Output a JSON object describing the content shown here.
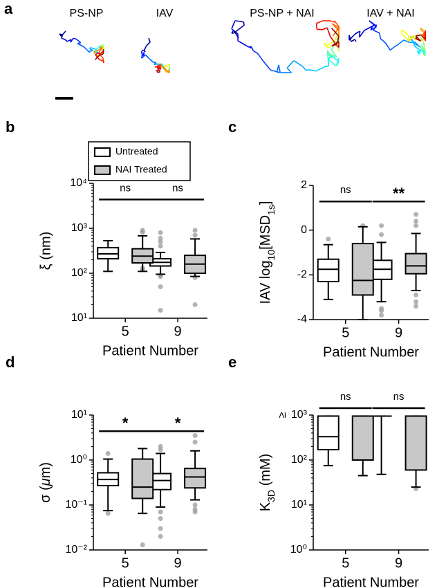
{
  "panel_a": {
    "letter": "a",
    "titles": [
      "PS-NP",
      "IAV",
      "PS-NP + NAI",
      "IAV + NAI"
    ]
  },
  "chart_data": [
    {
      "type": "box",
      "letter": "b",
      "ylabel": "ξ (nm)",
      "xlabel": "Patient Number",
      "categories": [
        "5",
        "9"
      ],
      "log": true,
      "ylim": [
        10,
        10000
      ],
      "yticks": [
        {
          "value": 10,
          "label": "10¹"
        },
        {
          "value": 100,
          "label": "10²"
        },
        {
          "value": 1000,
          "label": "10³"
        },
        {
          "value": 10000,
          "label": "10⁴"
        }
      ],
      "significance": [
        "ns",
        "ns"
      ],
      "legend": "top-left",
      "series": [
        {
          "name": "Untreated",
          "color": "#ffffff",
          "boxes": [
            {
              "min": 110,
              "q1": 210,
              "median": 270,
              "q3": 370,
              "max": 530,
              "outliers": []
            },
            {
              "min": 95,
              "q1": 145,
              "median": 175,
              "q3": 210,
              "max": 290,
              "outliers": [
                800,
                600,
                500,
                400,
                90,
                85,
                50,
                15
              ]
            }
          ]
        },
        {
          "name": "NAI Treated",
          "color": "#c8c8c8",
          "boxes": [
            {
              "min": 110,
              "q1": 170,
              "median": 240,
              "q3": 350,
              "max": 680,
              "outliers": [
                900,
                820,
                120,
                130
              ]
            },
            {
              "min": 85,
              "q1": 100,
              "median": 160,
              "q3": 250,
              "max": 580,
              "outliers": [
                900,
                700,
                80,
                20
              ]
            }
          ]
        }
      ]
    },
    {
      "type": "box",
      "letter": "c",
      "ylabel": [
        {
          "t": "IAV log"
        },
        {
          "t": "10",
          "sub": true
        },
        {
          "t": "[MSD"
        },
        {
          "t": "1s",
          "sub": true
        },
        {
          "t": "]"
        }
      ],
      "xlabel": "Patient Number",
      "categories": [
        "5",
        "9"
      ],
      "log": false,
      "ylim": [
        -4,
        2
      ],
      "yticks": [
        -4,
        -2,
        0,
        2
      ],
      "significance": [
        "ns",
        "**"
      ],
      "series": [
        {
          "color": "#ffffff",
          "boxes": [
            {
              "min": -3.1,
              "q1": -2.3,
              "median": -1.75,
              "q3": -1.3,
              "max": -0.65,
              "outliers": [
                -0.4
              ]
            },
            {
              "min": -3.2,
              "q1": -2.2,
              "median": -1.75,
              "q3": -1.35,
              "max": -0.55,
              "outliers": [
                0.2,
                -0.2,
                -3.5,
                -3.6,
                -3.8
              ]
            }
          ]
        },
        {
          "color": "#c8c8c8",
          "boxes": [
            {
              "min": -4,
              "q1": -2.9,
              "median": -2.25,
              "q3": -0.6,
              "max": 0.15,
              "outliers": [
                0.2
              ]
            },
            {
              "min": -2.7,
              "q1": -1.95,
              "median": -1.6,
              "q3": -1.05,
              "max": -0.15,
              "outliers": [
                0.7,
                0.4,
                0.2,
                -2.9,
                -3.2,
                -3.4
              ]
            }
          ]
        }
      ]
    },
    {
      "type": "box",
      "letter": "d",
      "ylabel": [
        {
          "t": "σ ("
        },
        {
          "t": "μ",
          "italic": true
        },
        {
          "t": "m)"
        }
      ],
      "xlabel": "Patient Number",
      "categories": [
        "5",
        "9"
      ],
      "log": true,
      "ylim": [
        0.01,
        10
      ],
      "yticks": [
        {
          "value": 0.01,
          "label": "10⁻²"
        },
        {
          "value": 0.1,
          "label": "10⁻¹"
        },
        {
          "value": 1,
          "label": "10⁰"
        },
        {
          "value": 10,
          "label": "10¹"
        }
      ],
      "significance": [
        "*",
        "*"
      ],
      "series": [
        {
          "color": "#ffffff",
          "boxes": [
            {
              "min": 0.075,
              "q1": 0.27,
              "median": 0.37,
              "q3": 0.52,
              "max": 1.05,
              "outliers": [
                1.4,
                0.065
              ]
            },
            {
              "min": 0.09,
              "q1": 0.22,
              "median": 0.35,
              "q3": 0.5,
              "max": 1.4,
              "outliers": [
                2,
                1.7,
                0.07,
                0.05,
                0.03,
                0.02
              ]
            }
          ]
        },
        {
          "color": "#c8c8c8",
          "boxes": [
            {
              "min": 0.065,
              "q1": 0.14,
              "median": 0.25,
              "q3": 1.05,
              "max": 1.8,
              "outliers": [
                0.013
              ]
            },
            {
              "min": 0.13,
              "q1": 0.24,
              "median": 0.42,
              "q3": 0.65,
              "max": 1.6,
              "outliers": [
                3.5,
                2.5,
                0.1,
                0.08,
                0.07
              ]
            }
          ]
        }
      ]
    },
    {
      "type": "box",
      "letter": "e",
      "ylabel": [
        {
          "t": "K"
        },
        {
          "t": "3D",
          "sub": true
        },
        {
          "t": " (mM)"
        }
      ],
      "xlabel": "Patient Number",
      "categories": [
        "5",
        "9"
      ],
      "log": true,
      "ylim": [
        1,
        1000
      ],
      "yticks": [
        {
          "value": 1,
          "label": "10⁰"
        },
        {
          "value": 10,
          "label": "10¹"
        },
        {
          "value": 100,
          "label": "10²"
        },
        {
          "value": 1000,
          "label": "10³"
        }
      ],
      "top_tick_prefix": "≥",
      "significance": [
        "ns",
        "ns"
      ],
      "series": [
        {
          "color": "#ffffff",
          "boxes": [
            {
              "min": 75,
              "q1": 170,
              "median": 330,
              "q3": 950,
              "max": 950,
              "outliers": []
            },
            {
              "min": 48,
              "q1": 950,
              "median": 950,
              "q3": 950,
              "max": 950,
              "outliers": []
            }
          ]
        },
        {
          "color": "#c8c8c8",
          "boxes": [
            {
              "min": 45,
              "q1": 100,
              "median": 950,
              "q3": 950,
              "max": 950,
              "outliers": []
            },
            {
              "min": 25,
              "q1": 60,
              "median": 950,
              "q3": 950,
              "max": 950,
              "outliers": [
                23
              ]
            }
          ]
        }
      ]
    }
  ]
}
